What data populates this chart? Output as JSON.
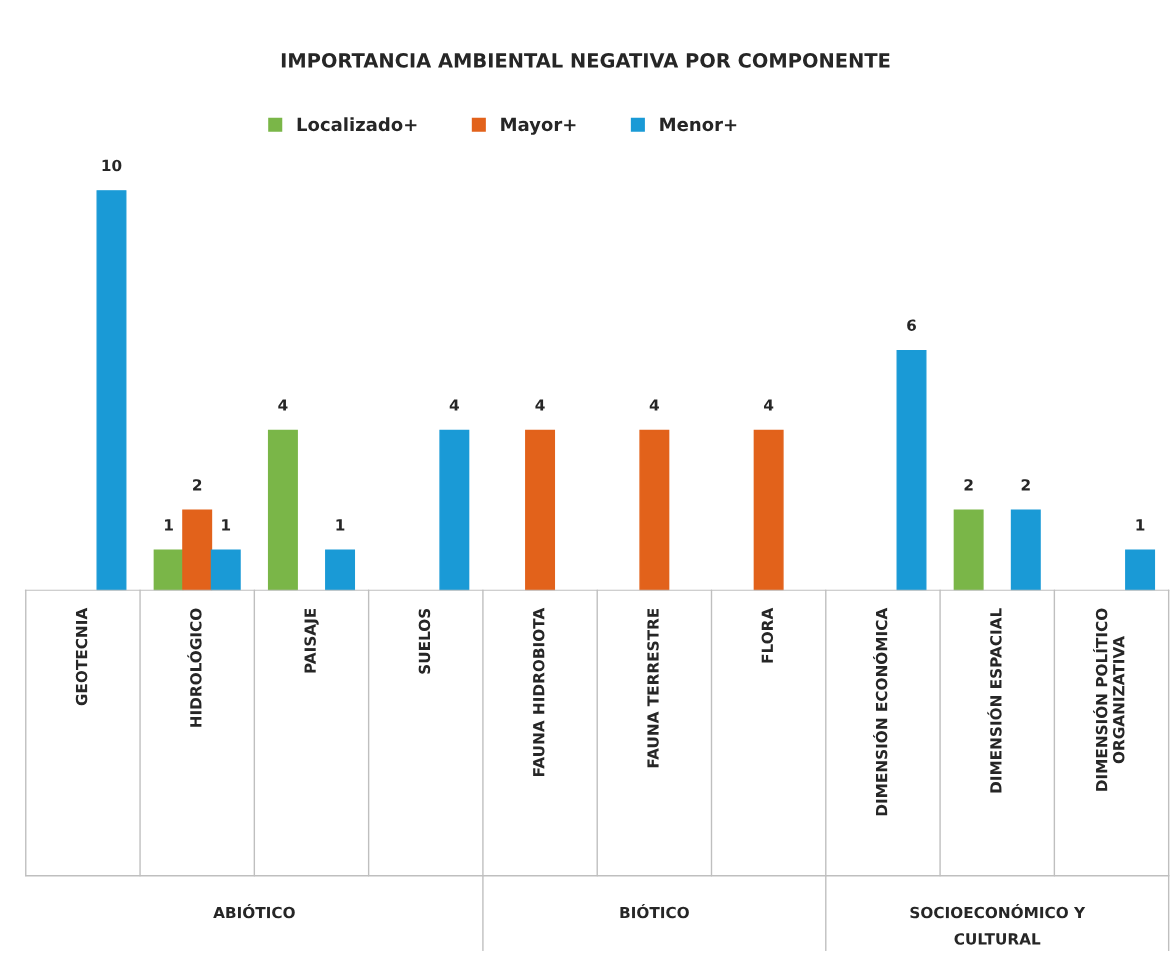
{
  "chart_data": {
    "type": "bar",
    "title": "IMPORTANCIA AMBIENTAL NEGATIVA POR COMPONENTE",
    "categories": [
      "GEOTECNIA",
      "HIDROLÓGICO",
      "PAISAJE",
      "SUELOS",
      "FAUNA HIDROBIOTA",
      "FAUNA TERRESTRE",
      "FLORA",
      "DIMENSIÓN ECONÓMICA",
      "DIMENSIÓN ESPACIAL",
      "DIMENSIÓN POLÍTICO\nORGANIZATIVA"
    ],
    "series": [
      {
        "name": "Localizado+",
        "color": "#7ab648",
        "values": [
          null,
          1,
          4,
          null,
          null,
          null,
          null,
          null,
          2,
          null
        ]
      },
      {
        "name": "Mayor+",
        "color": "#e2621b",
        "values": [
          null,
          2,
          null,
          null,
          4,
          4,
          4,
          null,
          null,
          null
        ]
      },
      {
        "name": "Menor+",
        "color": "#1a9ad6",
        "values": [
          10,
          1,
          1,
          4,
          null,
          null,
          null,
          6,
          2,
          1
        ]
      }
    ],
    "annotations": [
      "ABIÓTICO",
      "BIÓTICO",
      "SOCIOECONÓMICO Y\nCULTURAL"
    ],
    "data_labels": true,
    "legend": "top"
  }
}
